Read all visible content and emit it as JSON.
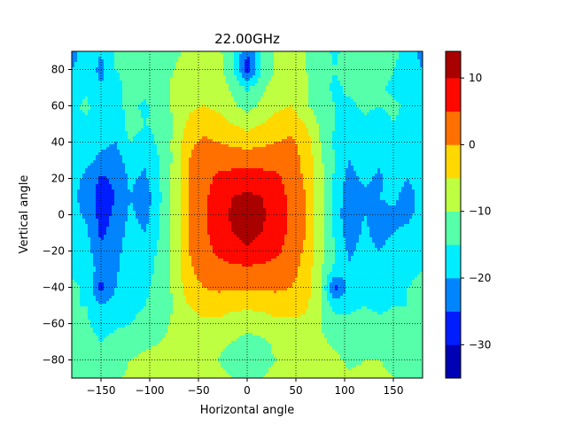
{
  "chart_data": {
    "type": "heatmap",
    "subtype": "filled-contour",
    "title": "22.00GHz",
    "xlabel": "Horizontal angle",
    "ylabel": "Vertical angle",
    "xlim": [
      -180,
      180
    ],
    "ylim": [
      -90,
      90
    ],
    "xticks": [
      -150,
      -100,
      -50,
      0,
      50,
      100,
      150
    ],
    "yticks": [
      -80,
      -60,
      -40,
      -20,
      0,
      20,
      40,
      60,
      80
    ],
    "grid": true,
    "grid_style": "dotted",
    "colormap": "jet",
    "colorbar": {
      "range": [
        -35,
        14
      ],
      "ticks": [
        10,
        0,
        -10,
        -20,
        -30
      ]
    },
    "contour_levels": [
      -35,
      -30,
      -25,
      -20,
      -15,
      -10,
      -5,
      0,
      5,
      10,
      14
    ],
    "value_grid": {
      "x": [
        -180,
        -165,
        -150,
        -135,
        -120,
        -105,
        -90,
        -75,
        -60,
        -45,
        -30,
        -15,
        0,
        15,
        30,
        45,
        60,
        75,
        90,
        105,
        120,
        135,
        150,
        165,
        180
      ],
      "y": [
        90,
        80,
        70,
        60,
        50,
        40,
        30,
        20,
        10,
        0,
        -10,
        -20,
        -30,
        -40,
        -50,
        -60,
        -70,
        -80,
        -90
      ],
      "values": [
        [
          -22,
          -17,
          -20,
          -15,
          -14,
          -15,
          -13,
          -11,
          -9,
          -8,
          -9,
          -13,
          -25,
          -14,
          -9,
          -8,
          -10,
          -13,
          -16,
          -13,
          -11,
          -13,
          -14,
          -17,
          -22
        ],
        [
          -20,
          -18,
          -21,
          -15,
          -13,
          -14,
          -12,
          -10,
          -8,
          -7,
          -8,
          -14,
          -28,
          -15,
          -9,
          -8,
          -10,
          -12,
          -15,
          -12,
          -12,
          -12,
          -15,
          -16,
          -20
        ],
        [
          -18,
          -16,
          -20,
          -17,
          -13,
          -13,
          -12,
          -9,
          -7,
          -6,
          -7,
          -11,
          -16,
          -11,
          -7,
          -7,
          -9,
          -13,
          -16,
          -14,
          -13,
          -14,
          -16,
          -18,
          -18
        ],
        [
          -16,
          -14,
          -18,
          -16,
          -14,
          -16,
          -12,
          -9,
          -6,
          -5,
          -6,
          -9,
          -12,
          -9,
          -6,
          -5,
          -9,
          -13,
          -15,
          -16,
          -14,
          -15,
          -14,
          -16,
          -17
        ],
        [
          -17,
          -16,
          -19,
          -18,
          -13,
          -15,
          -14,
          -10,
          -4,
          -2,
          -3,
          -5,
          -7,
          -5,
          -3,
          -2,
          -5,
          -11,
          -15,
          -18,
          -16,
          -17,
          -15,
          -17,
          -18
        ],
        [
          -18,
          -17,
          -19,
          -20,
          -15,
          -17,
          -14,
          -9,
          -1,
          1,
          0,
          -1,
          -2,
          -1,
          0,
          1,
          -2,
          -10,
          -16,
          -19,
          -16,
          -18,
          -16,
          -15,
          -17
        ],
        [
          -17,
          -19,
          -21,
          -22,
          -18,
          -19,
          -15,
          -9,
          0,
          2,
          3,
          3,
          3,
          3,
          3,
          2,
          -1,
          -9,
          -15,
          -20,
          -17,
          -19,
          -17,
          -16,
          -16
        ],
        [
          -18,
          -21,
          -26,
          -24,
          -19,
          -21,
          -15,
          -8,
          0,
          3,
          6,
          7,
          7,
          7,
          6,
          3,
          -1,
          -8,
          -16,
          -22,
          -19,
          -21,
          -18,
          -20,
          -17
        ],
        [
          -19,
          -22,
          -27,
          -25,
          -20,
          -23,
          -16,
          -8,
          0,
          4,
          7,
          10,
          11,
          10,
          7,
          4,
          0,
          -8,
          -17,
          -23,
          -21,
          -20,
          -19,
          -22,
          -18
        ],
        [
          -18,
          -21,
          -27,
          -24,
          -19,
          -22,
          -15,
          -8,
          0,
          4,
          7,
          11,
          13,
          11,
          7,
          4,
          0,
          -8,
          -17,
          -24,
          -20,
          -21,
          -21,
          -21,
          -18
        ],
        [
          -17,
          -19,
          -26,
          -23,
          -18,
          -20,
          -15,
          -8,
          0,
          4,
          7,
          10,
          12,
          10,
          7,
          4,
          0,
          -8,
          -16,
          -23,
          -19,
          -22,
          -20,
          -19,
          -17
        ],
        [
          -16,
          -18,
          -24,
          -22,
          -17,
          -18,
          -14,
          -8,
          0,
          3,
          6,
          8,
          9,
          8,
          6,
          3,
          -1,
          -8,
          -15,
          -21,
          -18,
          -20,
          -18,
          -18,
          -16
        ],
        [
          -16,
          -17,
          -22,
          -21,
          -16,
          -17,
          -14,
          -9,
          -1,
          2,
          3,
          4,
          4,
          4,
          3,
          2,
          -2,
          -9,
          -16,
          -19,
          -17,
          -18,
          -17,
          -16,
          -15
        ],
        [
          -14,
          -16,
          -27,
          -20,
          -16,
          -16,
          -13,
          -9,
          -2,
          0,
          1,
          1,
          1,
          1,
          1,
          0,
          -2,
          -9,
          -27,
          -18,
          -16,
          -17,
          -16,
          -15,
          -14
        ],
        [
          -15,
          -15,
          -20,
          -18,
          -16,
          -15,
          -13,
          -10,
          -5,
          -3,
          -3,
          -4,
          -4,
          -4,
          -3,
          -3,
          -4,
          -10,
          -17,
          -16,
          -15,
          -16,
          -15,
          -15,
          -15
        ],
        [
          -14,
          -14,
          -18,
          -16,
          -15,
          -14,
          -12,
          -9,
          -7,
          -6,
          -6,
          -7,
          -8,
          -7,
          -6,
          -6,
          -6,
          -10,
          -13,
          -14,
          -13,
          -14,
          -14,
          -14,
          -14
        ],
        [
          -12,
          -12,
          -15,
          -13,
          -12,
          -11,
          -10,
          -9,
          -8,
          -8,
          -9,
          -10,
          -12,
          -11,
          -9,
          -8,
          -8,
          -9,
          -11,
          -12,
          -12,
          -12,
          -12,
          -12,
          -13
        ],
        [
          -11,
          -11,
          -13,
          -12,
          -10,
          -9,
          -9,
          -8,
          -8,
          -9,
          -10,
          -12,
          -13,
          -11,
          -10,
          -9,
          -8,
          -8,
          -9,
          -11,
          -10,
          -10,
          -11,
          -11,
          -12
        ],
        [
          -10,
          -10,
          -11,
          -11,
          -9,
          -9,
          -8,
          -8,
          -8,
          -8,
          -9,
          -10,
          -11,
          -10,
          -9,
          -8,
          -8,
          -8,
          -8,
          -9,
          -9,
          -9,
          -10,
          -10,
          -11
        ]
      ]
    }
  }
}
